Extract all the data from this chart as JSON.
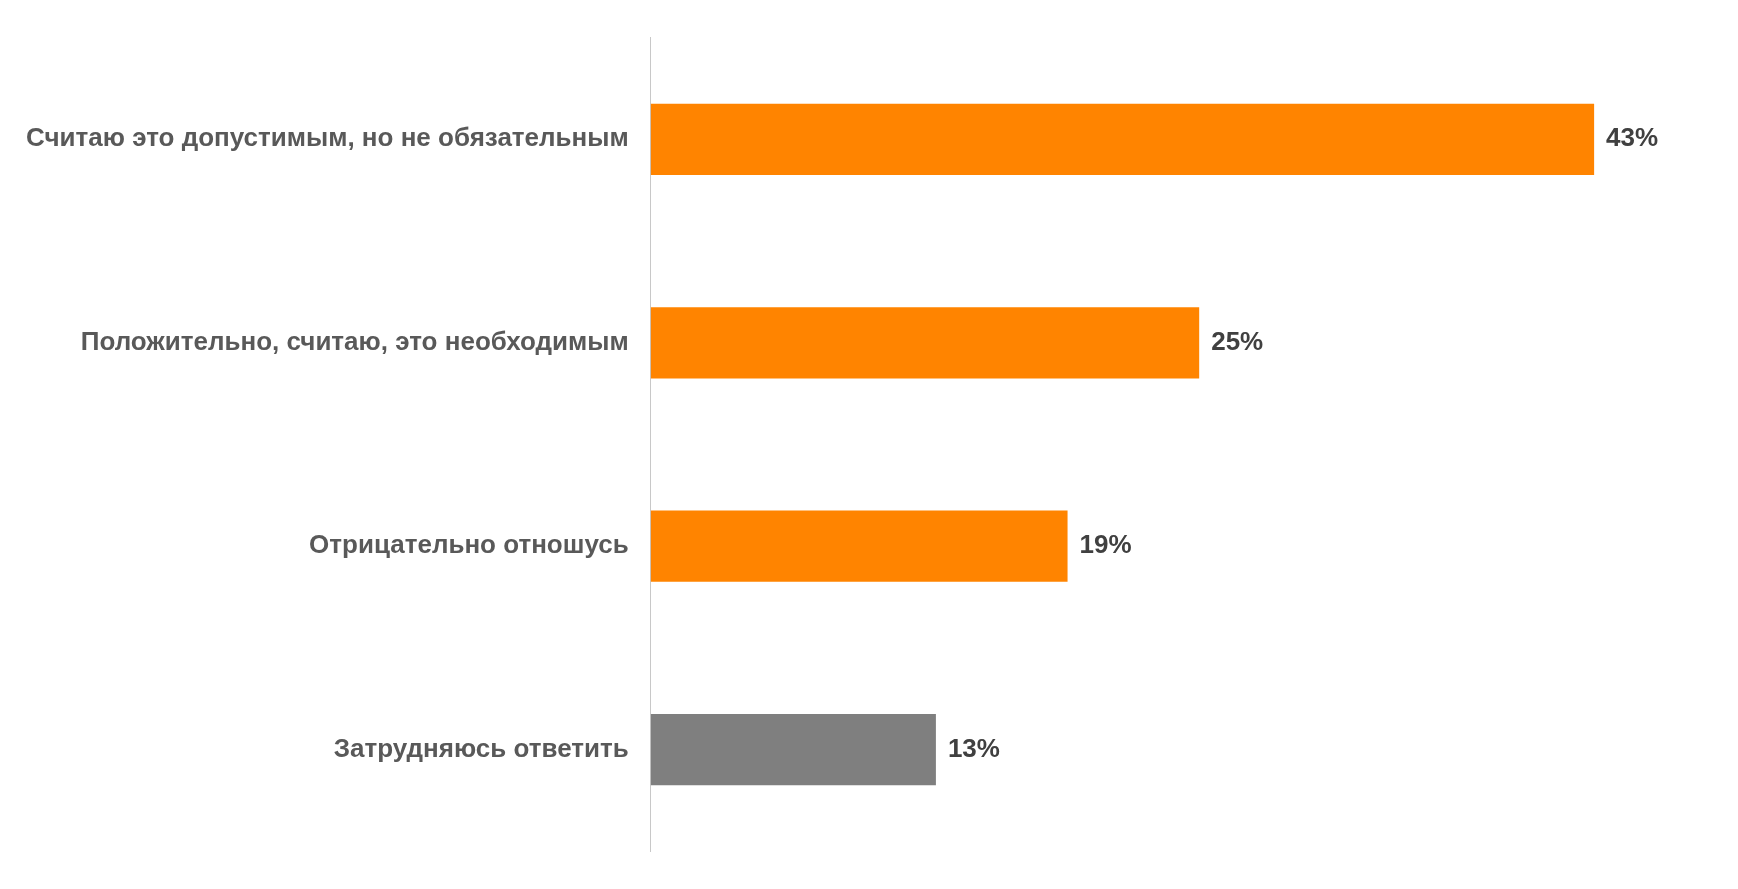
{
  "chart_data": {
    "type": "bar",
    "orientation": "horizontal",
    "categories": [
      "Считаю это допустимым, но не обязательным",
      "Положительно, считаю, это необходимым",
      "Отрицательно отношусь",
      "Затрудняюсь ответить"
    ],
    "values": [
      43,
      25,
      19,
      13
    ],
    "colors": [
      "#ff8400",
      "#ff8400",
      "#ff8400",
      "#7f7f7f"
    ],
    "value_labels": [
      "43%",
      "25%",
      "19%",
      "13%"
    ],
    "grid": false,
    "legend": false,
    "tick_labels": "y"
  }
}
